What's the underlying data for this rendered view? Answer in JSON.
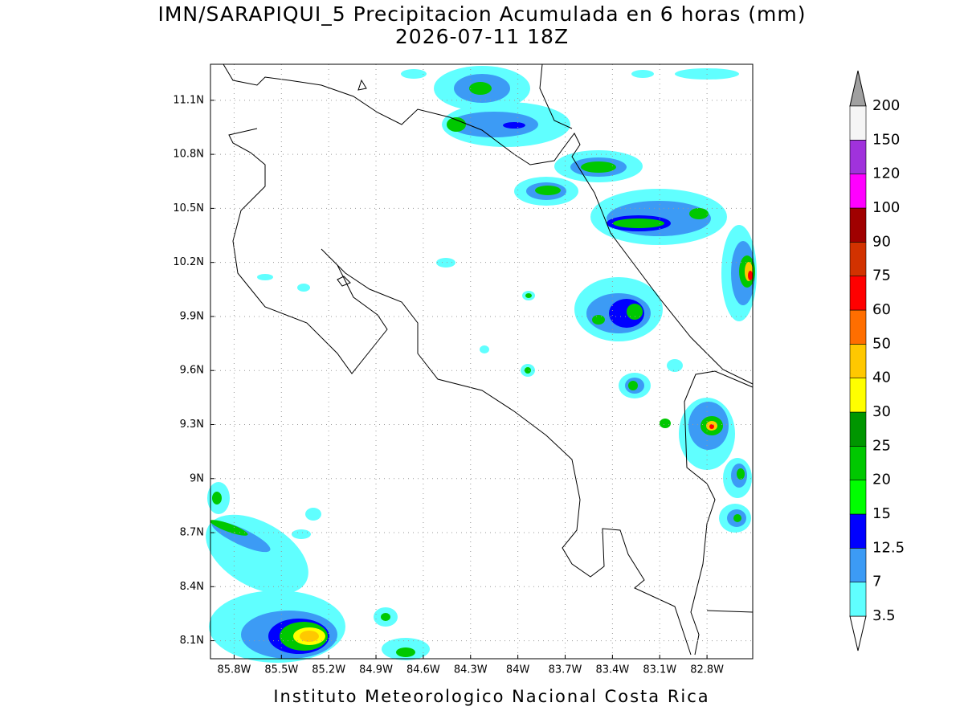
{
  "title": "IMN/SARAPIQUI_5 Precipitacion Acumulada en 6 horas (mm)",
  "subtitle": "2026-07-11 18Z",
  "footer": "Instituto Meteorologico Nacional Costa Rica",
  "map": {
    "xlim": [
      -85.95,
      -82.51
    ],
    "ylim": [
      8.0,
      11.3
    ],
    "grid": true,
    "xticks": [
      {
        "value": -85.8,
        "label": "85.8W"
      },
      {
        "value": -85.5,
        "label": "85.5W"
      },
      {
        "value": -85.2,
        "label": "85.2W"
      },
      {
        "value": -84.9,
        "label": "84.9W"
      },
      {
        "value": -84.6,
        "label": "84.6W"
      },
      {
        "value": -84.3,
        "label": "84.3W"
      },
      {
        "value": -84,
        "label": "84W"
      },
      {
        "value": -83.7,
        "label": "83.7W"
      },
      {
        "value": -83.4,
        "label": "83.4W"
      },
      {
        "value": -83.1,
        "label": "83.1W"
      },
      {
        "value": -82.8,
        "label": "82.8W"
      }
    ],
    "yticks": [
      {
        "value": 8.1,
        "label": "8.1N"
      },
      {
        "value": 8.4,
        "label": "8.4N"
      },
      {
        "value": 8.7,
        "label": "8.7N"
      },
      {
        "value": 9,
        "label": "9N"
      },
      {
        "value": 9.3,
        "label": "9.3N"
      },
      {
        "value": 9.6,
        "label": "9.6N"
      },
      {
        "value": 9.9,
        "label": "9.9N"
      },
      {
        "value": 10.2,
        "label": "10.2N"
      },
      {
        "value": 10.5,
        "label": "10.5N"
      },
      {
        "value": 10.8,
        "label": "10.8N"
      },
      {
        "value": 11.1,
        "label": "11.1N"
      }
    ]
  },
  "colorbar": {
    "levels": [
      3.5,
      7,
      12.5,
      15,
      20,
      25,
      30,
      40,
      50,
      60,
      75,
      90,
      100,
      120,
      150,
      200
    ],
    "colors": [
      "#60ffff",
      "#3c9bf5",
      "#0000ff",
      "#00ff00",
      "#00c800",
      "#009600",
      "#ffff00",
      "#ffc800",
      "#ff6e00",
      "#ff0000",
      "#d23200",
      "#a00000",
      "#ff00ff",
      "#a032dc",
      "#f5f5f5"
    ],
    "under_color": "#ffffff",
    "over_color": "#a0a0a0"
  }
}
